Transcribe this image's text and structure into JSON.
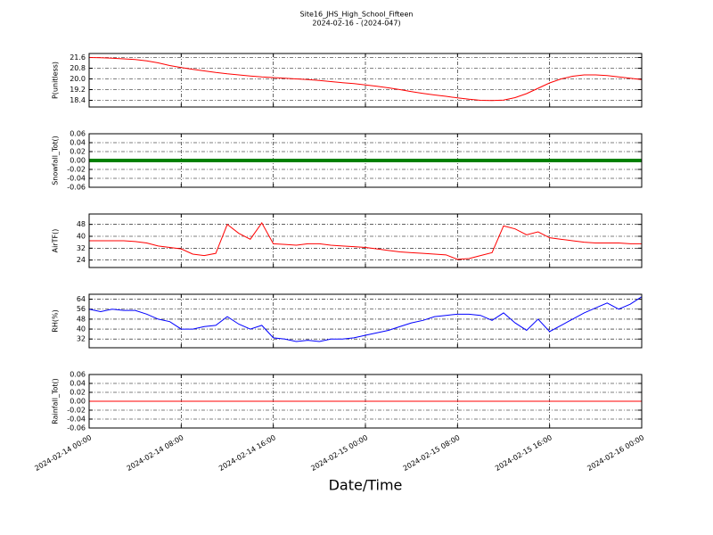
{
  "title": "Site16_JHS_High_School_Fifteen",
  "subtitle": "2024-02-16 - (2024-047)",
  "xlabel": "Date/Time",
  "xlim": [
    "2024-02-14 00:00",
    "2024-02-16 00:00"
  ],
  "xticks": [
    "2024-02-14 00:00",
    "2024-02-14 08:00",
    "2024-02-14 16:00",
    "2024-02-15 00:00",
    "2024-02-15 08:00",
    "2024-02-15 16:00",
    "2024-02-16 00:00"
  ],
  "x": [
    "2024-02-14 00:00",
    "2024-02-14 01:00",
    "2024-02-14 02:00",
    "2024-02-14 03:00",
    "2024-02-14 04:00",
    "2024-02-14 05:00",
    "2024-02-14 06:00",
    "2024-02-14 07:00",
    "2024-02-14 08:00",
    "2024-02-14 09:00",
    "2024-02-14 10:00",
    "2024-02-14 11:00",
    "2024-02-14 12:00",
    "2024-02-14 13:00",
    "2024-02-14 14:00",
    "2024-02-14 15:00",
    "2024-02-14 16:00",
    "2024-02-14 17:00",
    "2024-02-14 18:00",
    "2024-02-14 19:00",
    "2024-02-14 20:00",
    "2024-02-14 21:00",
    "2024-02-14 22:00",
    "2024-02-14 23:00",
    "2024-02-15 00:00",
    "2024-02-15 01:00",
    "2024-02-15 02:00",
    "2024-02-15 03:00",
    "2024-02-15 04:00",
    "2024-02-15 05:00",
    "2024-02-15 06:00",
    "2024-02-15 07:00",
    "2024-02-15 08:00",
    "2024-02-15 09:00",
    "2024-02-15 10:00",
    "2024-02-15 11:00",
    "2024-02-15 12:00",
    "2024-02-15 13:00",
    "2024-02-15 14:00",
    "2024-02-15 15:00",
    "2024-02-15 16:00",
    "2024-02-15 17:00",
    "2024-02-15 18:00",
    "2024-02-15 19:00",
    "2024-02-15 20:00",
    "2024-02-15 21:00",
    "2024-02-15 22:00",
    "2024-02-15 23:00",
    "2024-02-16 00:00"
  ],
  "chart_data": [
    {
      "type": "line",
      "ylabel": "P(unitless)",
      "color": "#ff0000",
      "grid": true,
      "ylim": [
        17.9,
        21.9
      ],
      "yticks": [
        18.4,
        19.2,
        {
          "value": 20,
          "label": "20.0"
        },
        20.8,
        21.6
      ],
      "values": [
        21.6,
        21.58,
        21.55,
        21.5,
        21.45,
        21.35,
        21.2,
        21.0,
        20.85,
        20.72,
        20.6,
        20.48,
        20.38,
        20.3,
        20.22,
        20.15,
        20.1,
        20.05,
        20.0,
        19.95,
        19.88,
        19.8,
        19.72,
        19.65,
        19.55,
        19.45,
        19.33,
        19.2,
        19.05,
        18.92,
        18.8,
        18.7,
        18.58,
        18.48,
        18.4,
        18.38,
        18.42,
        18.6,
        18.9,
        19.3,
        19.7,
        20.0,
        20.2,
        20.3,
        20.3,
        20.25,
        20.15,
        20.05,
        19.95
      ]
    },
    {
      "type": "line",
      "ylabel": "Snowfall_Tot()",
      "color": "#008000",
      "grid": true,
      "markers": true,
      "ylim": [
        -0.06,
        0.06
      ],
      "yticks": [
        -0.06,
        -0.04,
        -0.02,
        {
          "value": 0,
          "label": "0.00"
        },
        0.02,
        0.04,
        0.06
      ],
      "values": [
        0,
        0,
        0,
        0,
        0,
        0,
        0,
        0,
        0,
        0,
        0,
        0,
        0,
        0,
        0,
        0,
        0,
        0,
        0,
        0,
        0,
        0,
        0,
        0,
        0,
        0,
        0,
        0,
        0,
        0,
        0,
        0,
        0,
        0,
        0,
        0,
        0,
        0,
        0,
        0,
        0,
        0,
        0,
        0,
        0,
        0,
        0,
        0,
        0
      ]
    },
    {
      "type": "line",
      "ylabel": "AirTF()",
      "color": "#ff0000",
      "grid": true,
      "ylim": [
        19,
        55
      ],
      "yticks": [
        24,
        32,
        40,
        48
      ],
      "values": [
        37,
        37,
        37,
        37,
        36.5,
        35.5,
        33.5,
        32.5,
        31.5,
        28,
        27,
        28.5,
        48,
        42,
        38,
        49,
        35,
        34.5,
        34,
        35,
        35,
        34,
        33.5,
        33,
        32.5,
        31.5,
        30.5,
        29.5,
        29,
        28.5,
        28,
        27.5,
        24.5,
        25,
        27,
        29,
        47,
        45,
        41,
        43,
        39,
        38,
        37,
        36,
        35.5,
        35.5,
        35.5,
        35,
        35
      ]
    },
    {
      "type": "line",
      "ylabel": "RH(%)",
      "color": "#0000ff",
      "grid": true,
      "ylim": [
        25,
        68
      ],
      "yticks": [
        32,
        40,
        48,
        56,
        64
      ],
      "values": [
        56,
        54,
        56,
        55,
        55,
        52,
        48,
        46,
        40,
        40,
        42,
        43,
        50,
        44,
        40,
        43,
        33,
        32,
        30,
        31,
        30,
        32,
        32,
        33,
        35,
        37,
        39,
        42,
        45,
        47,
        50,
        51,
        52,
        52,
        51,
        47,
        53,
        45,
        39,
        48,
        38,
        43,
        48,
        53,
        57,
        61,
        56,
        60,
        66
      ]
    },
    {
      "type": "line",
      "ylabel": "Rainfall_Tot()",
      "color": "#ff0000",
      "grid": true,
      "ylim": [
        -0.06,
        0.06
      ],
      "yticks": [
        -0.06,
        -0.04,
        -0.02,
        {
          "value": 0,
          "label": "0.00"
        },
        0.02,
        0.04,
        0.06
      ],
      "values": [
        0,
        0,
        0,
        0,
        0,
        0,
        0,
        0,
        0,
        0,
        0,
        0,
        0,
        0,
        0,
        0,
        0,
        0,
        0,
        0,
        0,
        0,
        0,
        0,
        0,
        0,
        0,
        0,
        0,
        0,
        0,
        0,
        0,
        0,
        0,
        0,
        0,
        0,
        0,
        0,
        0,
        0,
        0,
        0,
        0,
        0,
        0,
        0,
        0
      ]
    }
  ]
}
